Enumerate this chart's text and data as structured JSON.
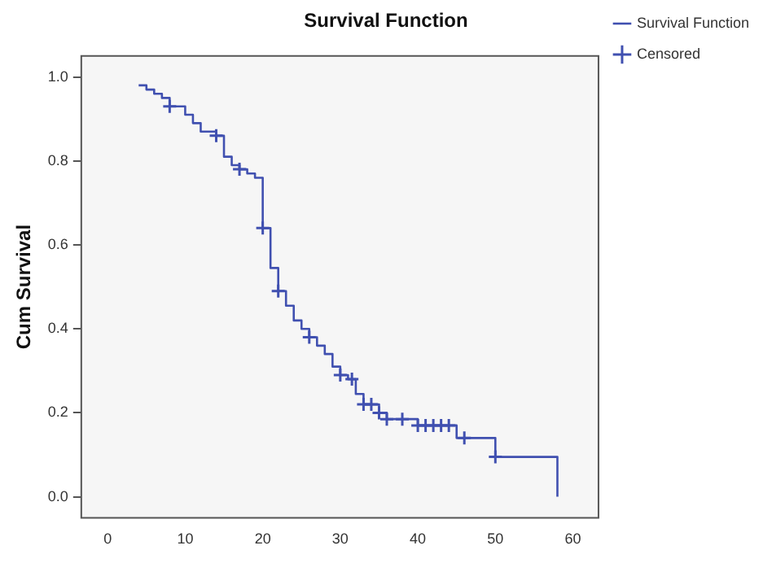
{
  "chart_data": {
    "type": "step",
    "title": "Survival Function",
    "ylabel": "Cum Survival",
    "xlim": [
      -3.4,
      63.3
    ],
    "xticks": [
      0,
      10,
      20,
      30,
      40,
      50,
      60
    ],
    "ylim": [
      -0.05,
      1.05
    ],
    "yticks": [
      {
        "value": 0,
        "label": "0.0"
      },
      {
        "value": 0.2,
        "label": "0.2"
      },
      {
        "value": 0.4,
        "label": "0.4"
      },
      {
        "value": 0.6,
        "label": "0.6"
      },
      {
        "value": 0.8,
        "label": "0.8"
      },
      {
        "value": 1,
        "label": "1.0"
      }
    ],
    "grid": false,
    "legend": "top right",
    "series": [
      {
        "name": "Survival Function",
        "color": "#4050b0",
        "marker": "none",
        "x": [
          4,
          5,
          6,
          7,
          8,
          10,
          11,
          12,
          14,
          15,
          16,
          17,
          18,
          19,
          20,
          21,
          22,
          23,
          24,
          25,
          26,
          27,
          28,
          29,
          30,
          31,
          32,
          33,
          35,
          36,
          40,
          45,
          50,
          58
        ],
        "values": [
          0.98,
          0.97,
          0.96,
          0.95,
          0.93,
          0.91,
          0.89,
          0.87,
          0.86,
          0.81,
          0.79,
          0.78,
          0.77,
          0.76,
          0.64,
          0.545,
          0.49,
          0.455,
          0.42,
          0.4,
          0.38,
          0.36,
          0.34,
          0.31,
          0.29,
          0.28,
          0.245,
          0.22,
          0.2,
          0.185,
          0.17,
          0.14,
          0.095,
          0
        ]
      },
      {
        "name": "Censored",
        "type": "scatter",
        "color": "#4050b0",
        "marker": "cross",
        "x": [
          8,
          14,
          17,
          20,
          22,
          26,
          30,
          31.5,
          33,
          34,
          35,
          36,
          38,
          40,
          41,
          42,
          43,
          44,
          46,
          50
        ],
        "values": [
          0.93,
          0.86,
          0.78,
          0.64,
          0.49,
          0.38,
          0.29,
          0.28,
          0.22,
          0.22,
          0.2,
          0.185,
          0.185,
          0.17,
          0.17,
          0.17,
          0.17,
          0.17,
          0.14,
          0.095
        ]
      }
    ]
  }
}
